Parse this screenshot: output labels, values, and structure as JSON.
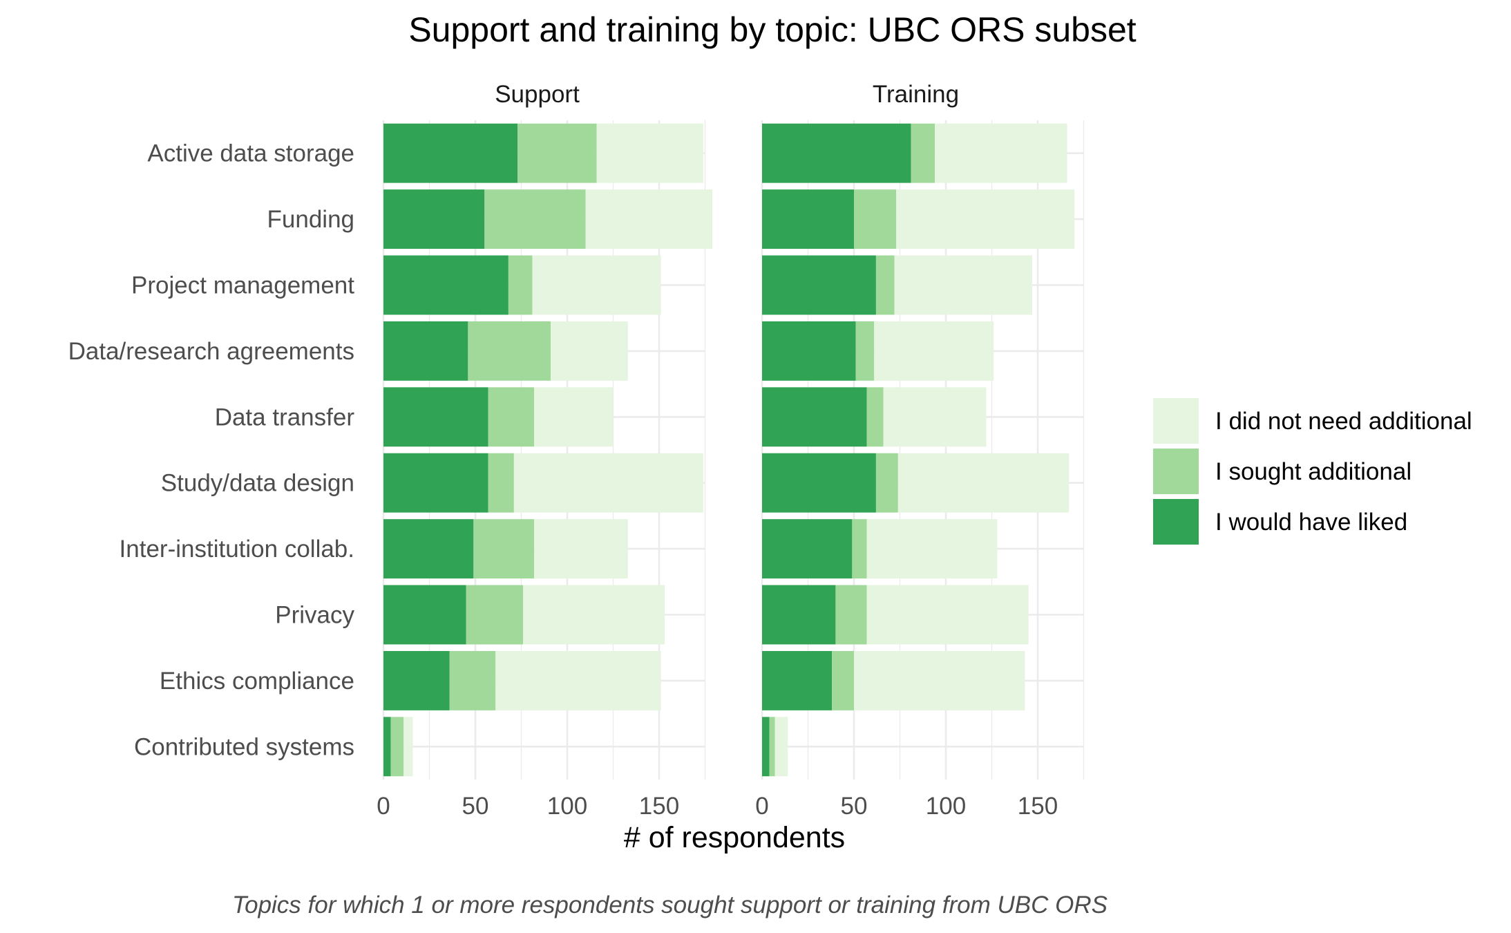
{
  "chart_data": {
    "type": "bar",
    "orientation": "horizontal",
    "stacked": true,
    "title": "Support and training by topic: UBC ORS subset",
    "xlabel": "# of respondents",
    "caption": "Topics for which 1 or more respondents sought support or training from UBC ORS",
    "xlim": [
      0,
      175
    ],
    "x_ticks": [
      "0",
      "50",
      "100",
      "150"
    ],
    "x_tick_values": [
      0,
      50,
      100,
      150
    ],
    "categories": [
      "Active data storage",
      "Funding",
      "Project management",
      "Data/research agreements",
      "Data transfer",
      "Study/data design",
      "Inter-institution collab.",
      "Privacy",
      "Ethics compliance",
      "Contributed systems"
    ],
    "panels": [
      {
        "name": "Support",
        "series": [
          {
            "name": "I would have liked",
            "color": "#31a354",
            "values": [
              73,
              55,
              68,
              46,
              57,
              57,
              49,
              45,
              36,
              4
            ]
          },
          {
            "name": "I sought additional",
            "color": "#a1d99b",
            "values": [
              43,
              55,
              13,
              45,
              25,
              14,
              33,
              31,
              25,
              7
            ]
          },
          {
            "name": "I did not need additional",
            "color": "#e5f5e0",
            "values": [
              58,
              69,
              70,
              42,
              43,
              103,
              51,
              77,
              90,
              5
            ]
          }
        ]
      },
      {
        "name": "Training",
        "series": [
          {
            "name": "I would have liked",
            "color": "#31a354",
            "values": [
              81,
              50,
              62,
              51,
              57,
              62,
              49,
              40,
              38,
              4
            ]
          },
          {
            "name": "I sought additional",
            "color": "#a1d99b",
            "values": [
              13,
              23,
              10,
              10,
              9,
              12,
              8,
              17,
              12,
              3
            ]
          },
          {
            "name": "I did not need additional",
            "color": "#e5f5e0",
            "values": [
              72,
              97,
              75,
              65,
              56,
              93,
              71,
              88,
              93,
              7
            ]
          }
        ]
      }
    ],
    "legend": {
      "position": "right",
      "entries": [
        {
          "label": "I did not need additional",
          "color": "#e5f5e0"
        },
        {
          "label": "I sought additional",
          "color": "#a1d99b"
        },
        {
          "label": "I would have liked",
          "color": "#31a354"
        }
      ]
    },
    "grid": true
  }
}
